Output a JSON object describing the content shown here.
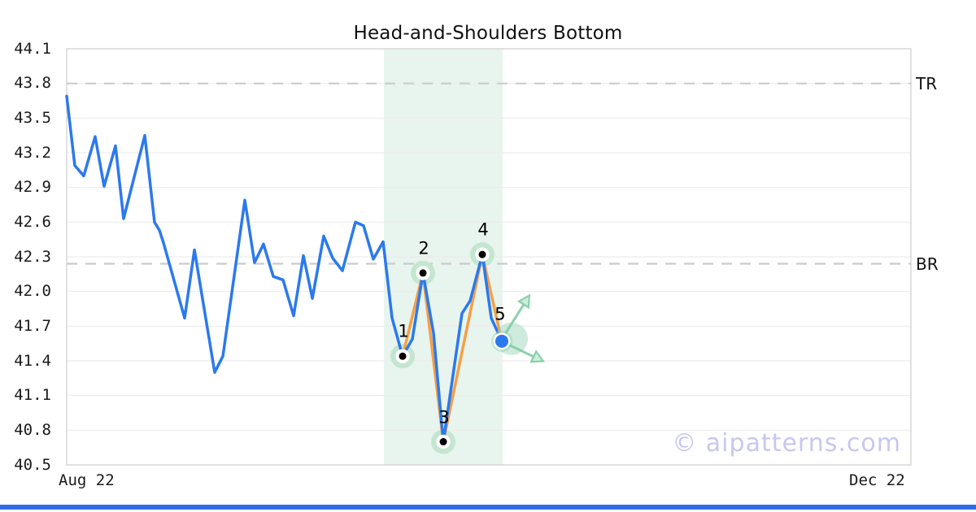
{
  "title": "Head-and-Shoulders Bottom",
  "watermark_text": "© aipatterns.com",
  "y_axis": {
    "ticks": [
      "44.1",
      "43.8",
      "43.5",
      "43.2",
      "42.9",
      "42.6",
      "42.3",
      "42.0",
      "41.7",
      "41.4",
      "41.1",
      "40.8",
      "40.5"
    ],
    "min": 40.5,
    "max": 44.1
  },
  "x_axis": {
    "ticks": [
      "Aug 22",
      "Dec 22"
    ]
  },
  "hlines": [
    {
      "label": "TR",
      "value": 43.8,
      "style": "dashed"
    },
    {
      "label": "BR",
      "value": 42.24,
      "style": "dashed"
    }
  ],
  "colors": {
    "price_line": "#2b79ee",
    "pattern_line": "#f5a046",
    "band": "#e8f4ee",
    "halo": "#c4e6d1",
    "big_halo": "#9ed7bb",
    "arrow": "#82cda5",
    "arrow_head_fill": "#cdeedd",
    "grid": "#ececec",
    "spine": "#d7d7d7",
    "dashed": "#cbcbcb",
    "point_dot": "#000000",
    "current_dot": "#2b79ee",
    "bottom_bar": "#2f6be4",
    "watermark": "#c7c7ef"
  },
  "chart_data": {
    "type": "line",
    "title": "Head-and-Shoulders Bottom",
    "xlabel": "",
    "ylabel": "",
    "x_range": [
      "Aug 22",
      "Dec 22"
    ],
    "ylim": [
      40.5,
      44.1
    ],
    "grid": true,
    "legend": "none",
    "series": [
      {
        "name": "price",
        "color": "#2b79ee",
        "points": [
          [
            0.0,
            43.69
          ],
          [
            0.0096,
            43.09
          ],
          [
            0.0202,
            43.0
          ],
          [
            0.0337,
            43.34
          ],
          [
            0.0443,
            42.91
          ],
          [
            0.0578,
            43.26
          ],
          [
            0.0674,
            42.63
          ],
          [
            0.0925,
            43.35
          ],
          [
            0.104,
            42.6
          ],
          [
            0.1098,
            42.53
          ],
          [
            0.1147,
            42.42
          ],
          [
            0.1397,
            41.77
          ],
          [
            0.1513,
            42.36
          ],
          [
            0.1753,
            41.3
          ],
          [
            0.185,
            41.44
          ],
          [
            0.211,
            42.79
          ],
          [
            0.2225,
            42.25
          ],
          [
            0.2331,
            42.41
          ],
          [
            0.2447,
            42.13
          ],
          [
            0.2563,
            42.1
          ],
          [
            0.2688,
            41.79
          ],
          [
            0.2804,
            42.31
          ],
          [
            0.291,
            41.94
          ],
          [
            0.3044,
            42.48
          ],
          [
            0.315,
            42.29
          ],
          [
            0.3266,
            42.18
          ],
          [
            0.342,
            42.6
          ],
          [
            0.3516,
            42.57
          ],
          [
            0.3632,
            42.28
          ],
          [
            0.3748,
            42.43
          ],
          [
            0.3854,
            41.77
          ],
          [
            0.3979,
            41.44
          ],
          [
            0.4095,
            41.59
          ],
          [
            0.422,
            42.16
          ],
          [
            0.4345,
            41.64
          ],
          [
            0.4461,
            40.7
          ],
          [
            0.4682,
            41.81
          ],
          [
            0.4779,
            41.92
          ],
          [
            0.4923,
            42.32
          ],
          [
            0.5029,
            41.77
          ],
          [
            0.5154,
            41.57
          ]
        ]
      },
      {
        "name": "pattern-overlay",
        "color": "#f5a046",
        "points": [
          [
            0.3979,
            41.44
          ],
          [
            0.422,
            42.16
          ],
          [
            0.4461,
            40.7
          ],
          [
            0.4923,
            42.32
          ],
          [
            0.5154,
            41.57
          ]
        ]
      }
    ],
    "pattern_points": [
      {
        "label": "1",
        "t": 0.3979,
        "price": 41.44,
        "role": "left-shoulder-low"
      },
      {
        "label": "2",
        "t": 0.422,
        "price": 42.16,
        "role": "peak"
      },
      {
        "label": "3",
        "t": 0.4461,
        "price": 40.7,
        "role": "head-low"
      },
      {
        "label": "4",
        "t": 0.4923,
        "price": 42.32,
        "role": "peak"
      },
      {
        "label": "5",
        "t": 0.5154,
        "price": 41.57,
        "role": "current-point"
      }
    ],
    "highlight_band_t": [
      0.3757,
      0.5164
    ],
    "breakout_arrows": [
      {
        "dir": "up",
        "from": [
          0.5183,
          41.62
        ],
        "to": [
          0.5424,
          41.9
        ]
      },
      {
        "dir": "down",
        "from": [
          0.5202,
          41.55
        ],
        "to": [
          0.5549,
          41.43
        ]
      }
    ]
  }
}
